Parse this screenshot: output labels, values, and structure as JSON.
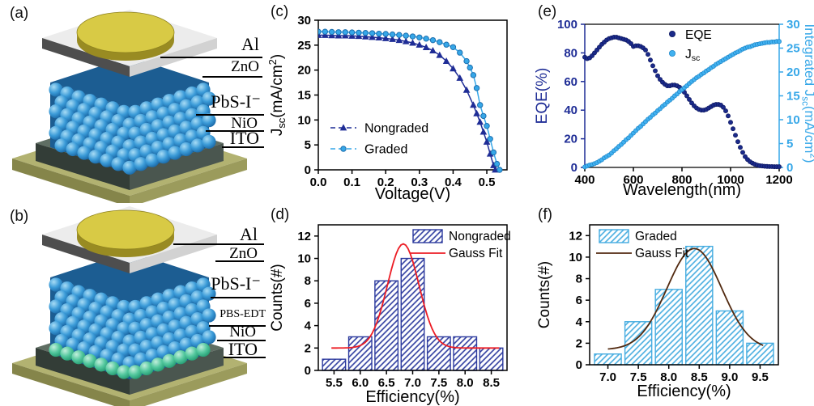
{
  "figure": {
    "background": "#ffffff"
  },
  "colors": {
    "navy": "#1f2d96",
    "lightblue": "#36a7e8",
    "red": "#ec1c24",
    "brown": "#522a10",
    "black": "#000000"
  },
  "panels": {
    "a": {
      "letter": "(a)",
      "labels": [
        {
          "text": "Al"
        },
        {
          "text": "ZnO"
        },
        {
          "text": "PbS-I⁻"
        },
        {
          "text": "NiO"
        },
        {
          "text": "ITO"
        }
      ]
    },
    "b": {
      "letter": "(b)",
      "labels": [
        {
          "text": "Al"
        },
        {
          "text": "ZnO"
        },
        {
          "text": "PbS-I⁻"
        },
        {
          "text": "PBS-EDT"
        },
        {
          "text": "NiO"
        },
        {
          "text": "ITO"
        }
      ]
    },
    "c": {
      "letter": "(c)"
    },
    "d": {
      "letter": "(d)"
    },
    "e": {
      "letter": "(e)"
    },
    "f": {
      "letter": "(f)"
    }
  },
  "device_colors": {
    "sphere_base": "#1c5d92",
    "blue_hi": "#a8dcf5",
    "blue_mid": "#3b9bd8",
    "blue_lo": "#1a68a6",
    "green_hi": "#c2efdc",
    "green_mid": "#52c79d",
    "green_lo": "#259b72",
    "zno_top": "#ececec",
    "zno_left": "#4e4e4e",
    "zno_right": "#d2d2d2",
    "al_top": "#d8ca45",
    "al_side": "#a99b2b",
    "al_bottom": "#998b22",
    "al_stroke": "#8f8320",
    "nio_top": "#5f6e63",
    "nio_left": "#333d37",
    "nio_right": "#4a564f",
    "ito_top": "#b2b271",
    "ito_left": "#85854a",
    "ito_right": "#9b9b5c"
  },
  "chart_data": [
    {
      "id": "c",
      "type": "line",
      "xlabel": "Voltage(V)",
      "ylabel_parts": [
        {
          "t": "J"
        },
        {
          "t": "sc",
          "sub": true
        },
        {
          "t": "(mA/cm"
        },
        {
          "t": "2",
          "sup": true
        },
        {
          "t": ")"
        }
      ],
      "xlim": [
        0,
        0.56
      ],
      "ylim": [
        0,
        30
      ],
      "xticks": [
        0.0,
        0.1,
        0.2,
        0.3,
        0.4,
        0.5
      ],
      "xtick_labels": [
        "0.0",
        "0.1",
        "0.2",
        "0.3",
        "0.4",
        "0.5"
      ],
      "yticks": [
        0,
        5,
        10,
        15,
        20,
        25,
        30
      ],
      "ytick_labels": [
        "0",
        "5",
        "10",
        "15",
        "20",
        "25",
        "30"
      ],
      "grid": false,
      "legend_position": "lower-left",
      "series": [
        {
          "name": "Nongraded",
          "marker": "triangle",
          "color": "#1f2d96",
          "x": [
            0,
            0.02,
            0.04,
            0.06,
            0.08,
            0.1,
            0.12,
            0.14,
            0.16,
            0.18,
            0.2,
            0.22,
            0.24,
            0.26,
            0.28,
            0.3,
            0.32,
            0.34,
            0.36,
            0.38,
            0.4,
            0.42,
            0.44,
            0.46,
            0.47,
            0.48,
            0.49,
            0.5,
            0.51,
            0.52,
            0.525
          ],
          "y": [
            27.0,
            27.0,
            26.95,
            26.9,
            26.9,
            26.85,
            26.8,
            26.7,
            26.6,
            26.5,
            26.35,
            26.2,
            26.0,
            25.75,
            25.45,
            25.05,
            24.55,
            23.9,
            23.0,
            21.8,
            20.3,
            18.4,
            16.0,
            13.0,
            11.3,
            9.6,
            7.6,
            5.6,
            3.2,
            0.9,
            0.0
          ]
        },
        {
          "name": "Graded",
          "marker": "circle",
          "color": "#36a7e8",
          "x": [
            0,
            0.02,
            0.04,
            0.06,
            0.08,
            0.1,
            0.12,
            0.14,
            0.16,
            0.18,
            0.2,
            0.22,
            0.24,
            0.26,
            0.28,
            0.3,
            0.32,
            0.34,
            0.36,
            0.38,
            0.4,
            0.42,
            0.44,
            0.45,
            0.46,
            0.47,
            0.48,
            0.49,
            0.5,
            0.51,
            0.52,
            0.53,
            0.538
          ],
          "y": [
            27.7,
            27.7,
            27.65,
            27.6,
            27.6,
            27.55,
            27.5,
            27.45,
            27.4,
            27.3,
            27.25,
            27.15,
            27.05,
            26.9,
            26.75,
            26.55,
            26.3,
            26.0,
            25.6,
            25.1,
            24.6,
            23.5,
            21.8,
            20.5,
            19.0,
            16.4,
            13.0,
            10.8,
            8.8,
            6.2,
            3.5,
            1.2,
            0.0
          ]
        }
      ]
    },
    {
      "id": "d",
      "type": "bar",
      "xlabel": "Efficiency(%)",
      "ylabel": "Counts(#)",
      "xlim": [
        5.2,
        8.8
      ],
      "ylim": [
        0,
        13
      ],
      "xticks": [
        5.5,
        6.0,
        6.5,
        7.0,
        7.5,
        8.0,
        8.5
      ],
      "xtick_labels": [
        "5.5",
        "6.0",
        "6.5",
        "7.0",
        "7.5",
        "8.0",
        "8.5"
      ],
      "yticks": [
        0,
        2,
        4,
        6,
        8,
        10,
        12
      ],
      "ytick_labels": [
        "0",
        "2",
        "4",
        "6",
        "8",
        "10",
        "12"
      ],
      "categories": [
        5.5,
        6.0,
        6.5,
        7.0,
        7.5,
        8.0,
        8.5
      ],
      "values": [
        1,
        3,
        8,
        10,
        3,
        3,
        2
      ],
      "bar_width": 0.44,
      "bar_color": "#2c3a9e",
      "series_label": "Nongraded",
      "fit_label": "Gauss Fit",
      "fit_color": "#ec1c24",
      "gauss": {
        "base": 2.0,
        "amp": 9.3,
        "center": 6.82,
        "sigma": 0.3,
        "range": [
          5.45,
          8.65
        ]
      },
      "legend_position": "top-right"
    },
    {
      "id": "e",
      "type": "dual-scatter",
      "xlabel": "Wavelength(nm)",
      "ylabel_left": "EQE(%)",
      "ylabel_right_parts": [
        {
          "t": "Integrated J"
        },
        {
          "t": "sc",
          "sub": true
        },
        {
          "t": "(mA/cm"
        },
        {
          "t": "2",
          "sup": true
        },
        {
          "t": ")"
        }
      ],
      "xlim": [
        400,
        1200
      ],
      "ylim_left": [
        0,
        100
      ],
      "ylim_right": [
        0,
        30
      ],
      "xticks": [
        400,
        600,
        800,
        1000,
        1200
      ],
      "xtick_labels": [
        "400",
        "600",
        "800",
        "1000",
        "1200"
      ],
      "yticks_left": [
        0,
        20,
        40,
        60,
        80,
        100
      ],
      "ytick_labels_left": [
        "0",
        "20",
        "40",
        "60",
        "80",
        "100"
      ],
      "yticks_right": [
        0,
        5,
        10,
        15,
        20,
        25,
        30
      ],
      "ytick_labels_right": [
        "0",
        "5",
        "10",
        "15",
        "20",
        "25",
        "30"
      ],
      "series": [
        {
          "name": "EQE",
          "axis": "left",
          "color": "#1b2a8a",
          "edge": "#0d1860",
          "x_start": 400,
          "x_step": 10,
          "y": [
            77.0,
            76.0,
            76.5,
            78.0,
            80.0,
            82.0,
            84.0,
            86.0,
            87.5,
            89.0,
            90.0,
            90.5,
            91.0,
            91.0,
            90.5,
            90.0,
            89.5,
            89.0,
            88.0,
            86.5,
            84.5,
            85.0,
            85.0,
            84.5,
            83.5,
            82.0,
            79.0,
            75.0,
            71.0,
            67.5,
            64.0,
            61.5,
            59.5,
            58.0,
            57.0,
            57.0,
            57.5,
            57.5,
            57.0,
            56.0,
            54.5,
            52.5,
            50.0,
            47.5,
            45.0,
            43.0,
            41.5,
            40.5,
            40.0,
            40.0,
            40.5,
            41.5,
            42.5,
            43.5,
            44.0,
            44.0,
            43.5,
            42.0,
            39.5,
            36.0,
            31.5,
            27.0,
            22.5,
            18.0,
            14.0,
            10.5,
            7.5,
            5.5,
            4.0,
            3.0,
            2.2,
            1.6,
            1.2,
            1.0,
            0.8,
            0.7,
            0.6,
            0.6,
            0.5,
            0.5,
            0.5
          ]
        },
        {
          "name": "Jsc",
          "name_parts": [
            {
              "t": "J"
            },
            {
              "t": "sc",
              "sub": true
            }
          ],
          "axis": "right",
          "color": "#41b1f0",
          "edge": "#1d86c8",
          "x_start": 400,
          "x_step": 10,
          "y": [
            0.1,
            0.3,
            0.5,
            0.6,
            0.8,
            1.0,
            1.3,
            1.6,
            2.0,
            2.3,
            2.6,
            3.0,
            3.5,
            3.9,
            4.4,
            4.8,
            5.3,
            5.8,
            6.2,
            6.7,
            7.2,
            7.7,
            8.2,
            8.6,
            9.1,
            9.6,
            10.1,
            10.5,
            11.0,
            11.4,
            11.9,
            12.3,
            12.8,
            13.2,
            13.7,
            14.1,
            14.5,
            15.0,
            15.4,
            15.9,
            16.3,
            16.7,
            17.1,
            17.6,
            18.0,
            18.4,
            18.8,
            19.1,
            19.5,
            19.8,
            20.2,
            20.5,
            20.9,
            21.2,
            21.6,
            21.9,
            22.2,
            22.5,
            22.8,
            23.1,
            23.4,
            23.7,
            24.0,
            24.2,
            24.5,
            24.8,
            25.0,
            25.2,
            25.3,
            25.5,
            25.7,
            25.8,
            25.9,
            26.0,
            26.1,
            26.2,
            26.2,
            26.3,
            26.3,
            26.4,
            26.4
          ]
        }
      ]
    },
    {
      "id": "f",
      "type": "bar",
      "xlabel": "Efficiency(%)",
      "ylabel": "Counts(#)",
      "xlim": [
        6.7,
        9.8
      ],
      "ylim": [
        0,
        13
      ],
      "xticks": [
        7.0,
        7.5,
        8.0,
        8.5,
        9.0,
        9.5
      ],
      "xtick_labels": [
        "7.0",
        "7.5",
        "8.0",
        "8.5",
        "9.0",
        "9.5"
      ],
      "yticks": [
        0,
        2,
        4,
        6,
        8,
        10,
        12
      ],
      "ytick_labels": [
        "0",
        "2",
        "4",
        "6",
        "8",
        "10",
        "12"
      ],
      "categories": [
        7.0,
        7.5,
        8.0,
        8.5,
        9.0,
        9.5
      ],
      "values": [
        1,
        4,
        7,
        11,
        5,
        2
      ],
      "bar_width": 0.44,
      "bar_color": "#45ace0",
      "series_label": "Graded",
      "fit_label": "Gauss Fit",
      "fit_color": "#522a10",
      "gauss": {
        "base": 1.4,
        "amp": 9.4,
        "center": 8.42,
        "sigma": 0.45,
        "range": [
          7.0,
          9.55
        ]
      },
      "legend_position": "top-left"
    }
  ]
}
